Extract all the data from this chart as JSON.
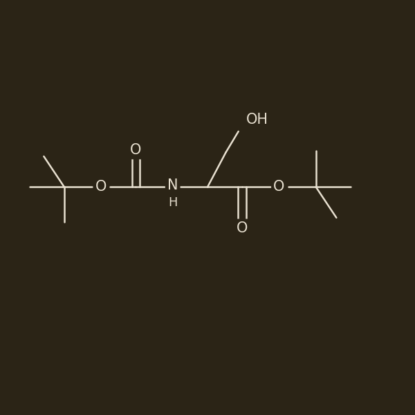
{
  "bg_color": "#2b2416",
  "line_color": "#e8e0d0",
  "line_width": 1.8,
  "font_size": 15,
  "fig_size": [
    6.0,
    6.0
  ],
  "dpi": 100,
  "xlim": [
    0,
    10
  ],
  "ylim": [
    0,
    10
  ]
}
